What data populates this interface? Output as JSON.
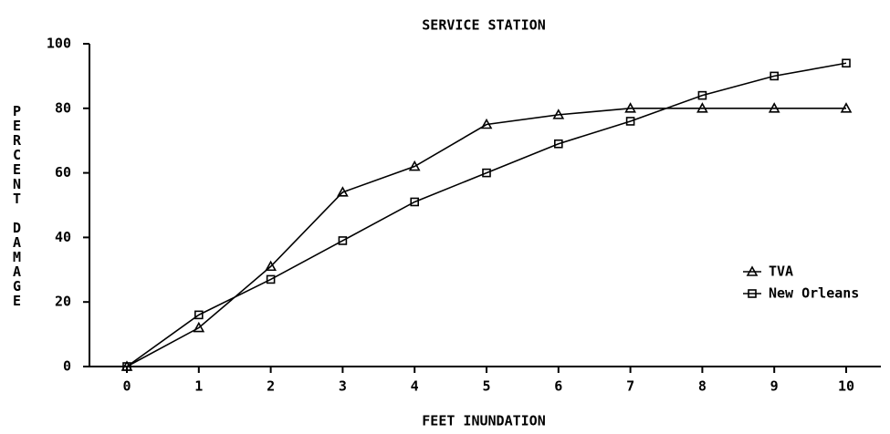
{
  "chart_data": {
    "type": "line",
    "title": "SERVICE STATION",
    "x_label": "FEET INUNDATION",
    "y_label": "PERCENT DAMAGE",
    "x": [
      0,
      1,
      2,
      3,
      4,
      5,
      6,
      7,
      8,
      9,
      10
    ],
    "series": [
      {
        "name": "TVA",
        "color": "#000000",
        "marker": "triangle",
        "values": [
          0,
          12,
          31,
          54,
          62,
          75,
          78,
          80,
          80,
          80,
          80
        ]
      },
      {
        "name": "New Orleans",
        "color": "#000000",
        "marker": "square",
        "values": [
          0,
          16,
          27,
          39,
          51,
          60,
          69,
          76,
          84,
          90,
          94
        ]
      }
    ],
    "xlim": [
      0,
      10
    ],
    "xticks": [
      0,
      1,
      2,
      3,
      4,
      5,
      6,
      7,
      8,
      9,
      10
    ],
    "ylim": [
      0,
      100
    ],
    "yticks": [
      0,
      20,
      40,
      60,
      80,
      100
    ],
    "legend": "right",
    "grid": false
  }
}
